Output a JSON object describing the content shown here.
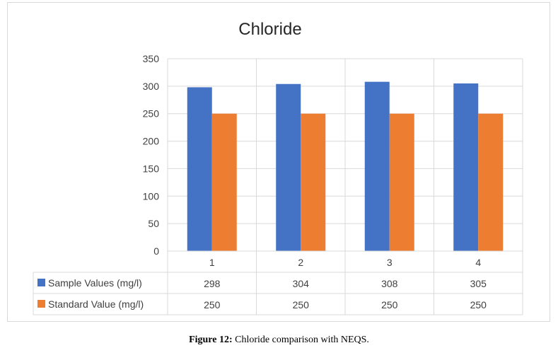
{
  "caption": {
    "label": "Figure 12:",
    "text": " Chloride comparison with NEQS."
  },
  "colors": {
    "sample": "#4472c4",
    "standard": "#ed7d31",
    "grid": "#d9d9d9",
    "text": "#404040"
  },
  "chart_data": {
    "type": "bar",
    "title": "Chloride",
    "xlabel": "",
    "ylabel": "",
    "categories": [
      "1",
      "2",
      "3",
      "4"
    ],
    "ylim": [
      0,
      350
    ],
    "yticks": [
      0,
      50,
      100,
      150,
      200,
      250,
      300,
      350
    ],
    "grid": true,
    "legend": "data-table",
    "series": [
      {
        "name": "Sample Values (mg/l)",
        "values": [
          298,
          304,
          308,
          305
        ],
        "color": "#4472c4"
      },
      {
        "name": "Standard Value (mg/l)",
        "values": [
          250,
          250,
          250,
          250
        ],
        "color": "#ed7d31"
      }
    ]
  }
}
